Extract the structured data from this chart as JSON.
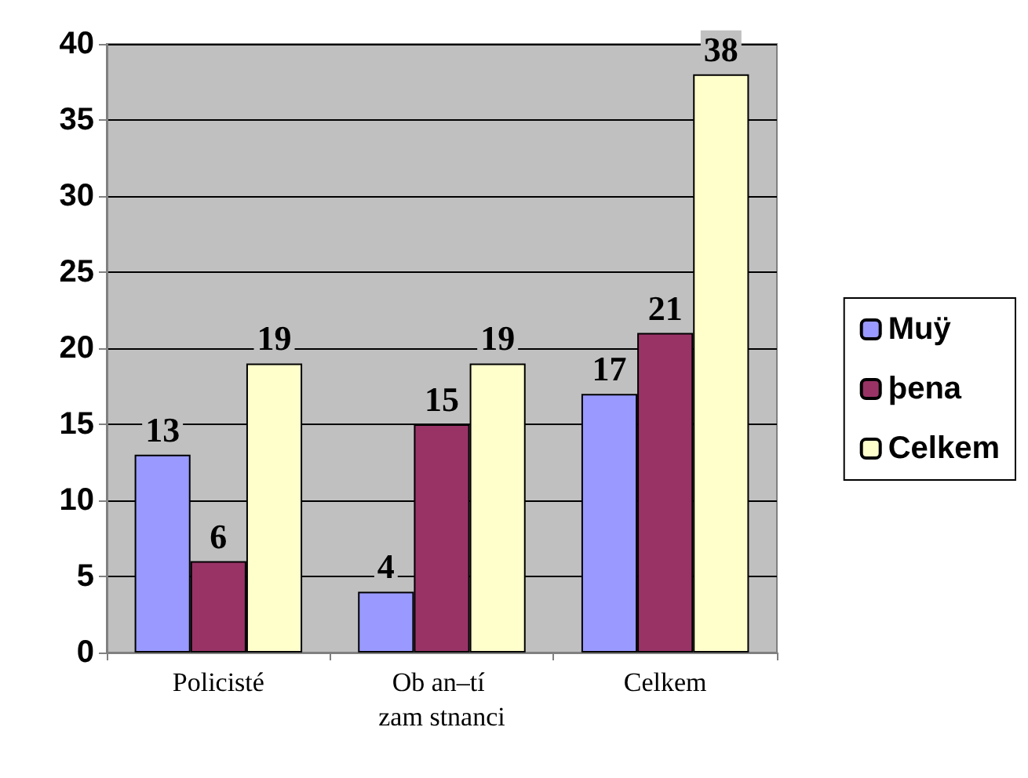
{
  "chart_data": {
    "type": "bar",
    "categories": [
      "Policisté",
      "Ob an–tí zam stnanci",
      "Celkem"
    ],
    "series": [
      {
        "name": "Muÿ",
        "color": "#9999ff",
        "values": [
          13,
          4,
          17
        ]
      },
      {
        "name": "þena",
        "color": "#993366",
        "values": [
          6,
          15,
          21
        ]
      },
      {
        "name": "Celkem",
        "color": "#ffffcc",
        "values": [
          19,
          19,
          38
        ]
      }
    ],
    "ylim": [
      0,
      40
    ],
    "yticks": [
      0,
      5,
      10,
      15,
      20,
      25,
      30,
      35,
      40
    ],
    "grid": "y",
    "legend": "right",
    "data_labels": true
  }
}
